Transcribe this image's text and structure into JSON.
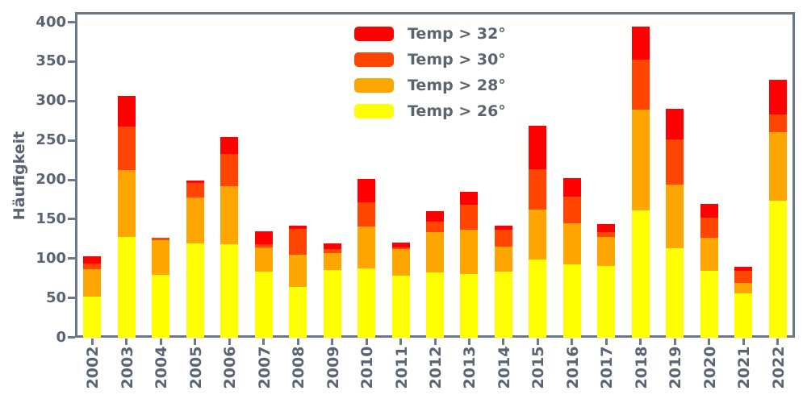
{
  "figure": {
    "background": "#ffffff",
    "text_color": "#5a6472",
    "spine_color": "#6e7988"
  },
  "legend": {
    "labels": [
      "Temp > 32°",
      "Temp > 30°",
      "Temp > 28°",
      "Temp > 26°"
    ],
    "frame": false,
    "position": "upper-center-left"
  },
  "chart_data": {
    "type": "bar",
    "stacked": true,
    "title": "",
    "xlabel": "",
    "ylabel": "Häufigkeit",
    "ylim": [
      0,
      412
    ],
    "yticks": [
      0,
      50,
      100,
      150,
      200,
      250,
      300,
      350,
      400
    ],
    "grid": false,
    "legend_position": "upper center-left, no frame",
    "categories": [
      "2002",
      "2003",
      "2004",
      "2005",
      "2006",
      "2007",
      "2008",
      "2009",
      "2010",
      "2011",
      "2012",
      "2013",
      "2014",
      "2015",
      "2016",
      "2017",
      "2018",
      "2019",
      "2020",
      "2021",
      "2022"
    ],
    "series": [
      {
        "name": "Temp > 26°",
        "color": "#ffff00",
        "values": [
          52,
          127,
          79,
          119,
          118,
          83,
          64,
          85,
          87,
          78,
          82,
          80,
          83,
          99,
          93,
          91,
          161,
          113,
          84,
          56,
          173
        ]
      },
      {
        "name": "Temp > 28°",
        "color": "#ffa500",
        "values": [
          34,
          85,
          44,
          59,
          74,
          31,
          41,
          22,
          54,
          34,
          52,
          57,
          32,
          63,
          52,
          36,
          128,
          81,
          42,
          13,
          87
        ]
      },
      {
        "name": "Temp > 30°",
        "color": "#ff4500",
        "values": [
          8,
          56,
          3,
          18,
          41,
          4,
          33,
          5,
          30,
          2,
          13,
          31,
          22,
          51,
          34,
          7,
          63,
          57,
          26,
          15,
          23
        ]
      },
      {
        "name": "Temp > 32°",
        "color": "#ff0000",
        "values": [
          9,
          38,
          0,
          3,
          21,
          17,
          4,
          7,
          30,
          6,
          13,
          17,
          5,
          56,
          23,
          10,
          42,
          39,
          17,
          6,
          44
        ]
      }
    ],
    "totals": [
      103,
      306,
      126,
      199,
      254,
      135,
      142,
      119,
      201,
      120,
      160,
      185,
      142,
      269,
      202,
      144,
      394,
      290,
      169,
      90,
      327
    ]
  }
}
